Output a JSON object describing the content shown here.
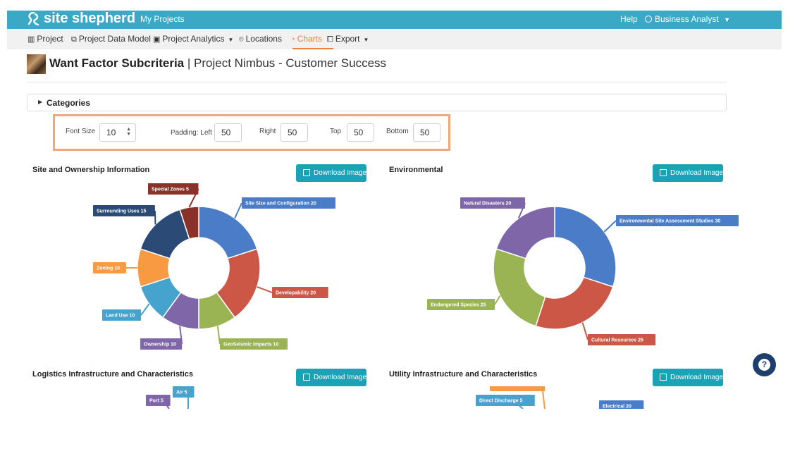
{
  "header": {
    "brand": "site shepherd",
    "my_projects": "My Projects",
    "help": "Help",
    "user": "Business Analyst"
  },
  "nav": {
    "project": "Project",
    "data_model": "Project Data Model",
    "analytics": "Project Analytics",
    "locations": "Locations",
    "charts": "Charts",
    "export": "Export"
  },
  "page": {
    "title_bold": "Want Factor Subcriteria",
    "title_rest": "| Project Nimbus - Customer Success"
  },
  "categories": {
    "label": "Categories"
  },
  "settings": {
    "font_size_label": "Font Size",
    "font_size": "10",
    "padding_left_label": "Padding: Left",
    "padding_left": "50",
    "right_label": "Right",
    "right": "50",
    "top_label": "Top",
    "top": "50",
    "bottom_label": "Bottom",
    "bottom": "50"
  },
  "download_label": "Download Image",
  "colors": {
    "brand": "#3ba8c6",
    "accent": "#ef7f3a",
    "button": "#1aa3b5"
  },
  "charts": [
    {
      "title": "Site and Ownership Information",
      "chart_data": {
        "type": "pie",
        "categories": [
          "Site Size and Configuration",
          "Developability",
          "GeoSeismic Impacts",
          "Ownership",
          "Land Use",
          "Zoning",
          "Surrounding Uses",
          "Special Zones"
        ],
        "values": [
          20,
          20,
          10,
          10,
          10,
          10,
          15,
          5
        ],
        "labels": [
          "Site Size and Configuration 20",
          "Developability 20",
          "GeoSeismic Impacts 10",
          "Ownership 10",
          "Land Use 10",
          "Zoning 10",
          "Surrounding Uses 15",
          "Special Zones 5"
        ],
        "colors": [
          "#4a7cc7",
          "#cc5746",
          "#9bb453",
          "#7f66a8",
          "#45a3cd",
          "#f79a41",
          "#2c4a76",
          "#8a3229"
        ]
      }
    },
    {
      "title": "Environmental",
      "chart_data": {
        "type": "pie",
        "categories": [
          "Environmental Site Assessment Studies",
          "Cultural Resources",
          "Endangered Species",
          "Natural Disasters"
        ],
        "values": [
          30,
          25,
          25,
          20
        ],
        "labels": [
          "Environmental Site Assessment Studies 30",
          "Cultural Resources 25",
          "Endangered Species 25",
          "Natural Disasters 20"
        ],
        "colors": [
          "#4a7cc7",
          "#cc5746",
          "#9bb453",
          "#7f66a8"
        ]
      }
    },
    {
      "title": "Logistics Infrastructure and Characteristics",
      "visible_labels": [
        {
          "text": "Port 5",
          "color": "#7f66a8"
        },
        {
          "text": "Air 5",
          "color": "#45a3cd"
        }
      ]
    },
    {
      "title": "Utility Infrastructure and Characteristics",
      "visible_labels": [
        {
          "text": "Direct Discharge 5",
          "color": "#45a3cd"
        },
        {
          "text": "Electrical 20",
          "color": "#4a7cc7"
        }
      ]
    }
  ]
}
